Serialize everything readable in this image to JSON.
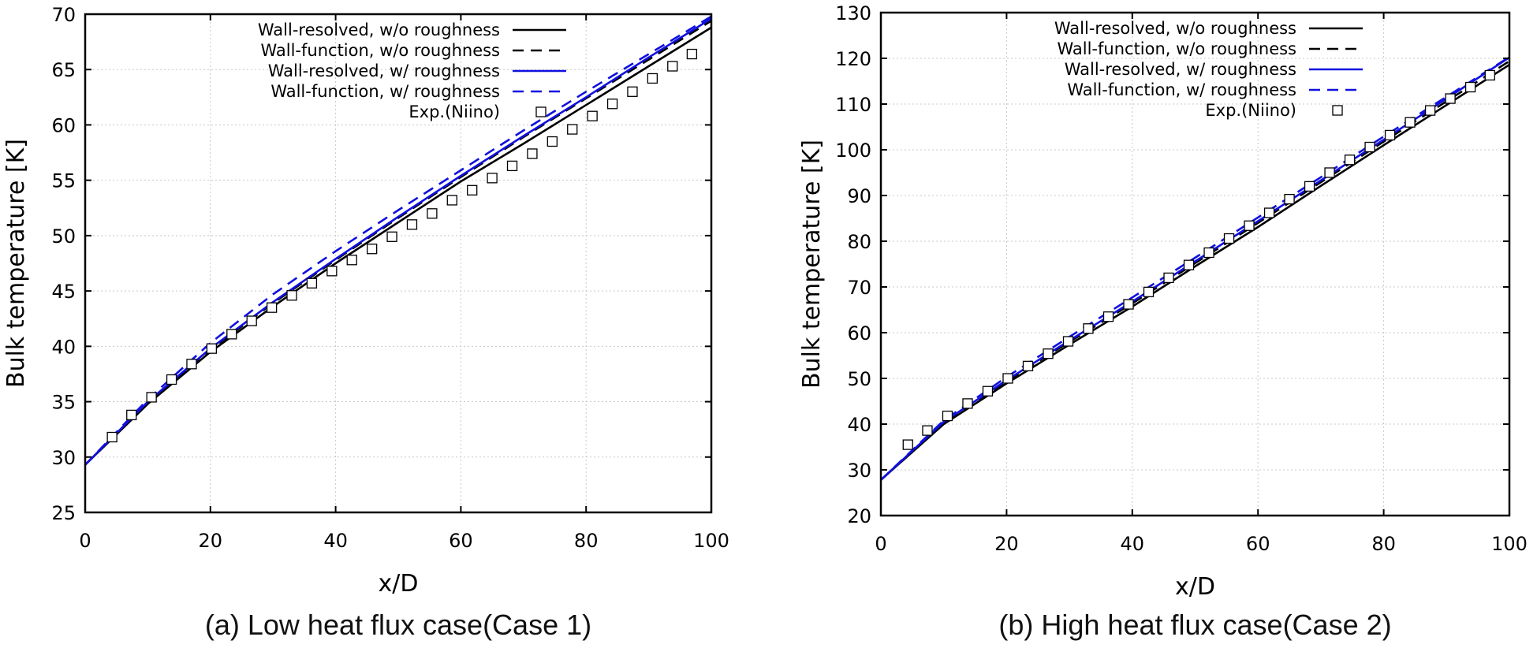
{
  "chart_data": [
    {
      "type": "line",
      "caption": "(a) Low heat flux case(Case 1)",
      "xlabel": "x/D",
      "ylabel": "Bulk temperature [K]",
      "xlim": [
        0,
        100
      ],
      "ylim": [
        25,
        70
      ],
      "xticks": [
        "0",
        "20",
        "40",
        "60",
        "80",
        "100"
      ],
      "yticks": [
        "25",
        "30",
        "35",
        "40",
        "45",
        "50",
        "55",
        "60",
        "65",
        "70"
      ],
      "grid": true,
      "legend_position": "top-left",
      "series": [
        {
          "name": "Wall-resolved, w/o roughness",
          "color": "#000000",
          "style": "solid",
          "x": [
            0,
            10,
            20,
            30,
            40,
            50,
            60,
            70,
            80,
            90,
            100
          ],
          "y": [
            29.3,
            34.8,
            39.5,
            43.6,
            47.5,
            51.2,
            54.9,
            58.3,
            61.8,
            65.3,
            68.8
          ]
        },
        {
          "name": "Wall-function, w/o roughness",
          "color": "#000000",
          "style": "dashed",
          "x": [
            0,
            10,
            20,
            30,
            40,
            50,
            60,
            70,
            80,
            90,
            100
          ],
          "y": [
            29.3,
            34.9,
            39.7,
            43.9,
            47.8,
            51.6,
            55.3,
            58.9,
            62.4,
            65.9,
            69.4
          ]
        },
        {
          "name": "Wall-resolved, w/ roughness",
          "color": "#1010e0",
          "style": "solid",
          "x": [
            0,
            10,
            20,
            30,
            40,
            50,
            60,
            70,
            80,
            90,
            100
          ],
          "y": [
            29.3,
            35.0,
            39.8,
            44.0,
            47.9,
            51.7,
            55.4,
            59.0,
            62.5,
            66.1,
            69.6
          ]
        },
        {
          "name": "Wall-function, w/ roughness",
          "color": "#1010e0",
          "style": "dashed",
          "x": [
            0,
            10,
            20,
            30,
            40,
            50,
            60,
            70,
            80,
            90,
            100
          ],
          "y": [
            29.3,
            35.2,
            40.3,
            44.7,
            48.6,
            52.3,
            55.9,
            59.5,
            63.0,
            66.4,
            69.8
          ]
        },
        {
          "name": "Exp.(Niino)",
          "color": "#000000",
          "style": "marker-square",
          "x": [
            4.3,
            7.4,
            10.6,
            13.8,
            17.0,
            20.2,
            23.4,
            26.6,
            29.8,
            33.0,
            36.2,
            39.4,
            42.6,
            45.8,
            49.0,
            52.2,
            55.4,
            58.6,
            61.8,
            65.0,
            68.2,
            71.4,
            74.6,
            77.8,
            81.0,
            84.2,
            87.4,
            90.6,
            93.8,
            96.9
          ],
          "y": [
            31.8,
            33.8,
            35.4,
            37.0,
            38.4,
            39.8,
            41.1,
            42.3,
            43.5,
            44.6,
            45.7,
            46.8,
            47.8,
            48.8,
            49.9,
            51.0,
            52.0,
            53.2,
            54.1,
            55.2,
            56.3,
            57.4,
            58.5,
            59.6,
            60.8,
            61.9,
            63.0,
            64.2,
            65.3,
            66.4
          ]
        }
      ]
    },
    {
      "type": "line",
      "caption": "(b) High heat flux case(Case 2)",
      "xlabel": "x/D",
      "ylabel": "Bulk temperature [K]",
      "xlim": [
        0,
        100
      ],
      "ylim": [
        20,
        130
      ],
      "xticks": [
        "0",
        "20",
        "40",
        "60",
        "80",
        "100"
      ],
      "yticks": [
        "20",
        "30",
        "40",
        "50",
        "60",
        "70",
        "80",
        "90",
        "100",
        "110",
        "120",
        "130"
      ],
      "grid": true,
      "legend_position": "top-left",
      "series": [
        {
          "name": "Wall-resolved, w/o roughness",
          "color": "#000000",
          "style": "solid",
          "x": [
            0,
            10,
            20,
            30,
            40,
            50,
            60,
            70,
            80,
            90,
            100
          ],
          "y": [
            27.8,
            40.0,
            48.9,
            57.4,
            65.7,
            74.5,
            83.1,
            92.1,
            101.0,
            109.8,
            118.6
          ]
        },
        {
          "name": "Wall-function, w/o roughness",
          "color": "#000000",
          "style": "dashed",
          "x": [
            0,
            10,
            20,
            30,
            40,
            50,
            60,
            70,
            80,
            90,
            100
          ],
          "y": [
            27.8,
            40.3,
            49.4,
            58.0,
            66.4,
            75.2,
            84.0,
            92.9,
            101.8,
            110.6,
            119.4
          ]
        },
        {
          "name": "Wall-resolved, w/ roughness",
          "color": "#1010e0",
          "style": "solid",
          "x": [
            0,
            10,
            20,
            30,
            40,
            50,
            60,
            70,
            80,
            90,
            100
          ],
          "y": [
            27.8,
            40.5,
            49.6,
            58.3,
            66.8,
            75.6,
            84.4,
            93.3,
            102.2,
            111.2,
            120.2
          ]
        },
        {
          "name": "Wall-function, w/ roughness",
          "color": "#1010e0",
          "style": "dashed",
          "x": [
            0,
            10,
            20,
            30,
            40,
            50,
            60,
            70,
            80,
            90,
            100
          ],
          "y": [
            27.8,
            40.8,
            50.3,
            59.1,
            67.7,
            76.4,
            85.2,
            94.0,
            102.9,
            111.6,
            120.3
          ]
        },
        {
          "name": "Exp.(Niino)",
          "color": "#000000",
          "style": "marker-square",
          "x": [
            4.3,
            7.4,
            10.6,
            13.8,
            17.0,
            20.2,
            23.4,
            26.6,
            29.8,
            33.0,
            36.2,
            39.4,
            42.6,
            45.8,
            49.0,
            52.2,
            55.4,
            58.6,
            61.8,
            65.0,
            68.2,
            71.4,
            74.6,
            77.8,
            81.0,
            84.2,
            87.4,
            90.6,
            93.8,
            96.9
          ],
          "y": [
            35.5,
            38.6,
            41.8,
            44.5,
            47.2,
            50.0,
            52.7,
            55.4,
            58.1,
            60.9,
            63.5,
            66.2,
            68.9,
            72.0,
            74.8,
            77.5,
            80.6,
            83.4,
            86.2,
            89.2,
            92.0,
            95.0,
            97.8,
            100.6,
            103.2,
            106.0,
            108.6,
            111.2,
            113.7,
            116.3
          ]
        }
      ]
    }
  ]
}
